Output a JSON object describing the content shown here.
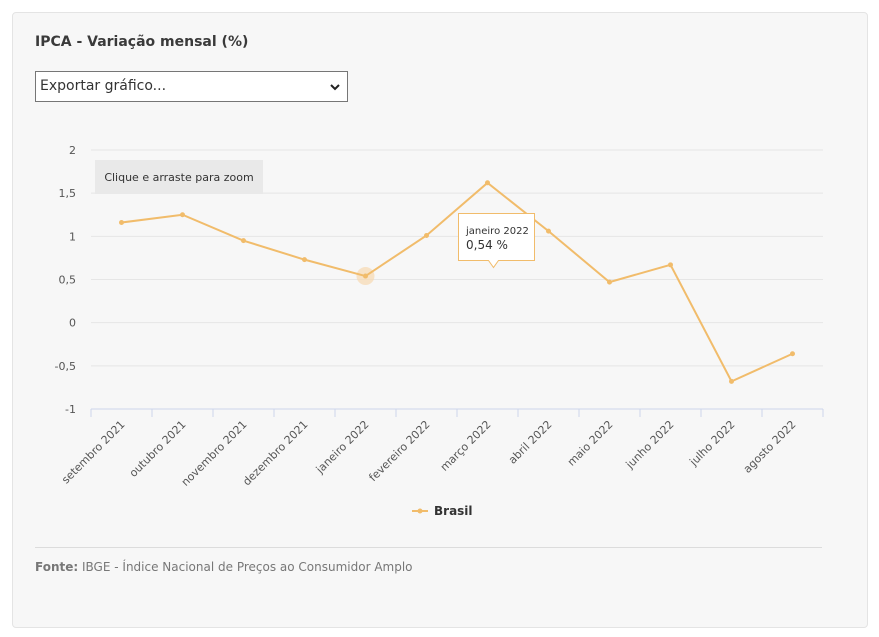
{
  "title": "IPCA - Variação mensal (%)",
  "export_select": {
    "value": "Exportar gráfico..."
  },
  "zoom_hint": "Clique e arraste para zoom",
  "tooltip": {
    "label": "janeiro 2022",
    "value": "0,54 %"
  },
  "footer": {
    "label": "Fonte:",
    "text": "IBGE - Índice Nacional de Preços ao Consumidor Amplo"
  },
  "colors": {
    "series": "#f1bc6b",
    "hover_halo": "#f6d9b0",
    "grid": "#e6e6e6",
    "axis": "#ccd6eb"
  },
  "chart_data": {
    "type": "line",
    "ylim": [
      -1,
      2
    ],
    "y_ticks": [
      "2",
      "1,5",
      "1",
      "0,5",
      "0",
      "-0,5",
      "-1"
    ],
    "y_tick_values": [
      2,
      1.5,
      1,
      0.5,
      0,
      -0.5,
      -1
    ],
    "categories": [
      "setembro 2021",
      "outubro 2021",
      "novembro 2021",
      "dezembro 2021",
      "janeiro 2022",
      "fevereiro 2022",
      "março 2022",
      "abril 2022",
      "maio 2022",
      "junho 2022",
      "julho 2022",
      "agosto 2022"
    ],
    "series": [
      {
        "name": "Brasil",
        "values": [
          1.16,
          1.25,
          0.95,
          0.73,
          0.54,
          1.01,
          1.62,
          1.06,
          0.47,
          0.67,
          -0.68,
          -0.36
        ]
      }
    ],
    "legend": "bottom-center",
    "grid": true
  }
}
